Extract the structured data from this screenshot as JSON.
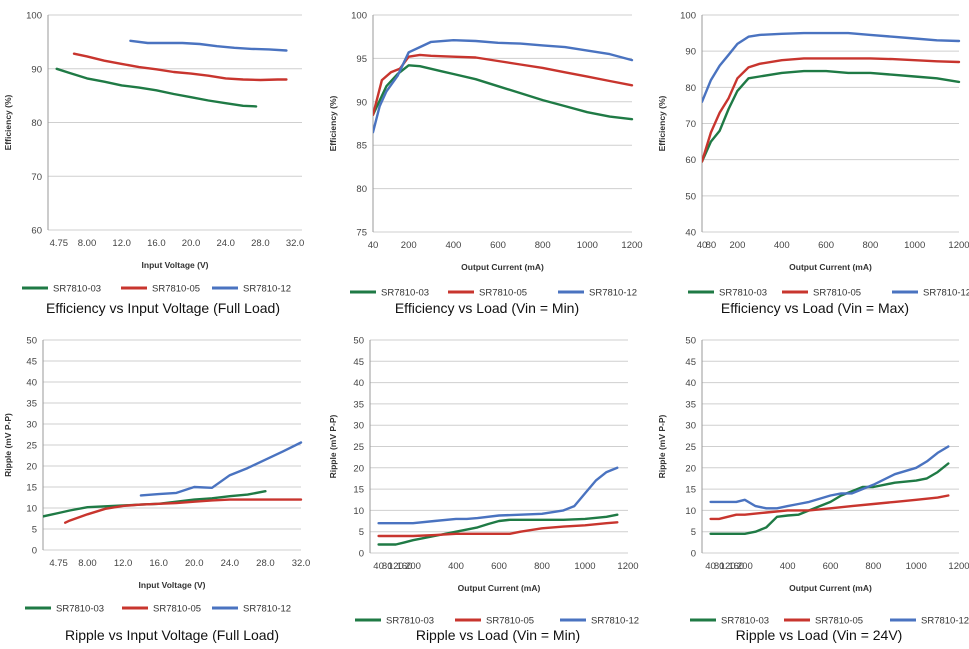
{
  "colors": {
    "SR7810-03": "#1f7a45",
    "SR7810-05": "#c8352e",
    "SR7810-12": "#4a73c0",
    "grid": "#cfcfcf"
  },
  "chart_data": [
    {
      "type": "line",
      "caption": "Efficiency vs Input Voltage (Full Load)",
      "xlabel": "Input Voltage (V)",
      "ylabel": "Efficiency (%)",
      "xlim": [
        3.5,
        32.8
      ],
      "ylim": [
        60,
        100
      ],
      "x_ticks": [
        4.75,
        8,
        12,
        16,
        20,
        24,
        28,
        32
      ],
      "x_tick_labels": [
        "4.75",
        "8.00",
        "12.0",
        "16.0",
        "20.0",
        "24.0",
        "28.0",
        "32.0"
      ],
      "y_ticks": [
        60,
        70,
        80,
        90,
        100
      ],
      "grid": true,
      "legend": "bottom",
      "series": [
        {
          "name": "SR7810-03",
          "x": [
            4.5,
            6,
            8,
            10,
            12,
            14,
            16,
            18,
            20,
            22,
            24,
            26,
            27.5
          ],
          "y": [
            90,
            89.2,
            88.2,
            87.6,
            86.9,
            86.5,
            86.0,
            85.3,
            84.7,
            84.1,
            83.6,
            83.1,
            83.0
          ]
        },
        {
          "name": "SR7810-05",
          "x": [
            6.5,
            8,
            10,
            12,
            14,
            16,
            18,
            20,
            22,
            24,
            26,
            28,
            30,
            31
          ],
          "y": [
            92.8,
            92.3,
            91.5,
            90.9,
            90.3,
            89.9,
            89.4,
            89.1,
            88.7,
            88.2,
            88.0,
            87.9,
            88.0,
            88.0
          ]
        },
        {
          "name": "SR7810-12",
          "x": [
            13,
            15,
            17,
            19,
            21,
            23,
            25,
            27,
            29,
            31
          ],
          "y": [
            95.2,
            94.8,
            94.8,
            94.8,
            94.6,
            94.2,
            93.9,
            93.7,
            93.6,
            93.4
          ]
        }
      ]
    },
    {
      "type": "line",
      "caption": "Efficiency vs Load (Vin = Min)",
      "xlabel": "Output Current (mA)",
      "ylabel": "Efficiency (%)",
      "xlim": [
        40,
        1200
      ],
      "ylim": [
        75,
        100
      ],
      "x_ticks": [
        40,
        200,
        400,
        600,
        800,
        1000,
        1200
      ],
      "x_tick_labels": [
        "40",
        "200",
        "400",
        "600",
        "800",
        "1000",
        "1200"
      ],
      "y_ticks": [
        75,
        80,
        85,
        90,
        95,
        100
      ],
      "grid": true,
      "legend": "bottom",
      "series": [
        {
          "name": "SR7810-03",
          "x": [
            40,
            100,
            150,
            200,
            250,
            300,
            350,
            400,
            500,
            600,
            700,
            800,
            900,
            1000,
            1100,
            1200
          ],
          "y": [
            88.5,
            91.8,
            93.2,
            94.2,
            94.1,
            93.8,
            93.5,
            93.2,
            92.6,
            91.8,
            91.0,
            90.2,
            89.5,
            88.8,
            88.3,
            88.0
          ]
        },
        {
          "name": "SR7810-05",
          "x": [
            40,
            80,
            120,
            160,
            200,
            250,
            300,
            400,
            500,
            600,
            700,
            800,
            900,
            1000,
            1100,
            1200
          ],
          "y": [
            88.5,
            92.5,
            93.4,
            93.8,
            95.2,
            95.4,
            95.3,
            95.2,
            95.1,
            94.7,
            94.3,
            93.9,
            93.4,
            92.9,
            92.4,
            91.9
          ]
        },
        {
          "name": "SR7810-12",
          "x": [
            40,
            70,
            100,
            150,
            200,
            250,
            300,
            400,
            500,
            600,
            700,
            800,
            900,
            1000,
            1100,
            1200
          ],
          "y": [
            86.5,
            89.5,
            91.2,
            93.0,
            95.7,
            96.3,
            96.9,
            97.1,
            97.0,
            96.8,
            96.7,
            96.5,
            96.3,
            95.9,
            95.5,
            94.8
          ]
        }
      ]
    },
    {
      "type": "line",
      "caption": "Efficiency vs Load (Vin = Max)",
      "xlabel": "Output Current (mA)",
      "ylabel": "Efficiency (%)",
      "xlim": [
        40,
        1200
      ],
      "ylim": [
        40,
        100
      ],
      "x_ticks": [
        40,
        80,
        200,
        400,
        600,
        800,
        1000,
        1200
      ],
      "x_tick_labels": [
        "40",
        "80",
        "200",
        "400",
        "600",
        "800",
        "1000",
        "1200"
      ],
      "y_ticks": [
        40,
        50,
        60,
        70,
        80,
        90,
        100
      ],
      "grid": true,
      "legend": "bottom",
      "series": [
        {
          "name": "SR7810-03",
          "x": [
            40,
            80,
            120,
            160,
            200,
            250,
            300,
            400,
            500,
            600,
            700,
            800,
            900,
            1000,
            1100,
            1200
          ],
          "y": [
            59.5,
            65.0,
            68.0,
            74.0,
            79.0,
            82.5,
            83.0,
            84.0,
            84.5,
            84.5,
            84.0,
            84.0,
            83.5,
            83.0,
            82.5,
            81.5
          ]
        },
        {
          "name": "SR7810-05",
          "x": [
            40,
            80,
            120,
            160,
            200,
            250,
            300,
            400,
            500,
            600,
            700,
            800,
            900,
            1000,
            1100,
            1200
          ],
          "y": [
            59.5,
            67.5,
            73.0,
            77.0,
            82.5,
            85.5,
            86.5,
            87.5,
            88.0,
            88.0,
            88.0,
            88.0,
            87.8,
            87.5,
            87.2,
            87.0
          ]
        },
        {
          "name": "SR7810-12",
          "x": [
            40,
            80,
            120,
            160,
            200,
            250,
            300,
            400,
            500,
            600,
            700,
            800,
            900,
            1000,
            1100,
            1200
          ],
          "y": [
            76.0,
            82.0,
            86.0,
            89.0,
            92.0,
            94.0,
            94.5,
            94.8,
            95.0,
            95.0,
            95.0,
            94.5,
            94.0,
            93.5,
            93.0,
            92.8
          ]
        }
      ]
    },
    {
      "type": "line",
      "caption": "Ripple vs Input Voltage (Full Load)",
      "xlabel": "Input Voltage (V)",
      "ylabel": "Ripple (mV P-P)",
      "xlim": [
        3,
        32
      ],
      "ylim": [
        0,
        50
      ],
      "x_ticks": [
        4.75,
        8,
        12,
        16,
        20,
        24,
        28,
        32
      ],
      "x_tick_labels": [
        "4.75",
        "8.00",
        "12.0",
        "16.0",
        "20.0",
        "24.0",
        "28.0",
        "32.0"
      ],
      "y_ticks": [
        0,
        5,
        10,
        15,
        20,
        25,
        30,
        35,
        40,
        45,
        50
      ],
      "grid": true,
      "legend": "bottom",
      "series": [
        {
          "name": "SR7810-03",
          "x": [
            3,
            4.75,
            6,
            8,
            10,
            12,
            14,
            16,
            18,
            20,
            22,
            24,
            26,
            28
          ],
          "y": [
            8,
            8.8,
            9.4,
            10.2,
            10.4,
            10.6,
            10.8,
            11.0,
            11.5,
            12.0,
            12.3,
            12.8,
            13.2,
            14.0
          ]
        },
        {
          "name": "SR7810-05",
          "x": [
            5.5,
            6,
            8,
            10,
            12,
            14,
            16,
            18,
            20,
            22,
            24,
            26,
            28,
            32
          ],
          "y": [
            6.5,
            7.0,
            8.5,
            9.8,
            10.5,
            10.8,
            11.0,
            11.2,
            11.5,
            11.8,
            12.0,
            12.0,
            12.0,
            12.0
          ]
        },
        {
          "name": "SR7810-12",
          "x": [
            14,
            16,
            18,
            20,
            22,
            24,
            26,
            28,
            30,
            32
          ],
          "y": [
            13.0,
            13.3,
            13.6,
            15.0,
            14.8,
            17.8,
            19.5,
            21.5,
            23.5,
            25.6
          ]
        }
      ]
    },
    {
      "type": "line",
      "caption": "Ripple vs Load (Vin = Min)",
      "xlabel": "Output Current (mA)",
      "ylabel": "Ripple (mV P-P)",
      "xlim": [
        0,
        1200
      ],
      "ylim": [
        0,
        50
      ],
      "x_ticks": [
        40,
        80,
        120,
        160,
        200,
        400,
        600,
        800,
        1000,
        1200
      ],
      "x_tick_labels": [
        "40",
        "80",
        "120",
        "160",
        "200",
        "400",
        "600",
        "800",
        "1000",
        "1200"
      ],
      "y_ticks": [
        0,
        5,
        10,
        15,
        20,
        25,
        30,
        35,
        40,
        45,
        50
      ],
      "grid": true,
      "legend": "bottom",
      "series": [
        {
          "name": "SR7810-03",
          "x": [
            40,
            80,
            120,
            160,
            200,
            250,
            300,
            350,
            400,
            450,
            500,
            550,
            600,
            650,
            700,
            800,
            900,
            1000,
            1100,
            1150
          ],
          "y": [
            2,
            2,
            2,
            2.5,
            3,
            3.5,
            4,
            4.5,
            5,
            5.5,
            6,
            6.8,
            7.5,
            7.8,
            7.8,
            7.8,
            7.8,
            8.0,
            8.5,
            9.0
          ]
        },
        {
          "name": "SR7810-05",
          "x": [
            40,
            80,
            120,
            160,
            200,
            300,
            400,
            500,
            600,
            650,
            700,
            800,
            900,
            1000,
            1100,
            1150
          ],
          "y": [
            4,
            4,
            4,
            4,
            4,
            4.2,
            4.5,
            4.5,
            4.5,
            4.5,
            5.0,
            5.8,
            6.2,
            6.5,
            7.0,
            7.2
          ]
        },
        {
          "name": "SR7810-12",
          "x": [
            40,
            80,
            120,
            160,
            200,
            300,
            400,
            450,
            500,
            600,
            700,
            800,
            900,
            950,
            1000,
            1050,
            1100,
            1150
          ],
          "y": [
            7,
            7,
            7,
            7,
            7,
            7.5,
            8,
            8,
            8.2,
            8.8,
            9,
            9.2,
            10,
            11,
            14,
            17,
            19,
            20
          ]
        }
      ]
    },
    {
      "type": "line",
      "caption": "Ripple vs Load (Vin = 24V)",
      "xlabel": "Output Current (mA)",
      "ylabel": "Ripple (mV P-P)",
      "xlim": [
        0,
        1200
      ],
      "ylim": [
        0,
        50
      ],
      "x_ticks": [
        40,
        80,
        120,
        160,
        200,
        400,
        600,
        800,
        1000,
        1200
      ],
      "x_tick_labels": [
        "40",
        "80",
        "120",
        "160",
        "200",
        "400",
        "600",
        "800",
        "1000",
        "1200"
      ],
      "y_ticks": [
        0,
        5,
        10,
        15,
        20,
        25,
        30,
        35,
        40,
        45,
        50
      ],
      "grid": true,
      "legend": "bottom",
      "series": [
        {
          "name": "SR7810-03",
          "x": [
            40,
            80,
            120,
            160,
            200,
            250,
            300,
            350,
            400,
            450,
            500,
            550,
            600,
            650,
            700,
            750,
            800,
            900,
            1000,
            1050,
            1100,
            1150
          ],
          "y": [
            4.5,
            4.5,
            4.5,
            4.5,
            4.5,
            5.0,
            6.0,
            8.5,
            8.8,
            9.0,
            10.0,
            11.0,
            12.0,
            13.5,
            14.5,
            15.5,
            15.5,
            16.5,
            17.0,
            17.5,
            19.0,
            21.0
          ]
        },
        {
          "name": "SR7810-05",
          "x": [
            40,
            80,
            120,
            160,
            200,
            300,
            400,
            500,
            600,
            700,
            800,
            900,
            1000,
            1100,
            1150
          ],
          "y": [
            8,
            8,
            8.5,
            9,
            9,
            9.5,
            10,
            10,
            10.5,
            11,
            11.5,
            12,
            12.5,
            13,
            13.5
          ]
        },
        {
          "name": "SR7810-12",
          "x": [
            40,
            80,
            120,
            160,
            200,
            250,
            300,
            350,
            400,
            450,
            500,
            600,
            650,
            700,
            800,
            900,
            1000,
            1050,
            1100,
            1150
          ],
          "y": [
            12,
            12,
            12,
            12,
            12.5,
            11,
            10.5,
            10.5,
            11,
            11.5,
            12,
            13.5,
            14,
            14,
            16,
            18.5,
            20,
            21.5,
            23.5,
            25
          ]
        }
      ]
    }
  ]
}
